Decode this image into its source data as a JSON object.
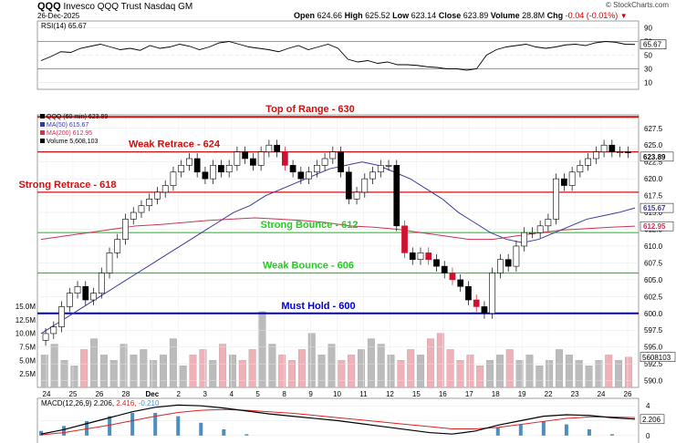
{
  "header": {
    "symbol": "QQQ",
    "name": "Invesco QQQ Trust",
    "exchange": "Nasdaq GM",
    "date": "26-Dec-2025",
    "credit": "© StockCharts.com",
    "open_label": "Open",
    "open": "624.66",
    "high_label": "High",
    "high": "625.52",
    "low_label": "Low",
    "low": "623.14",
    "close_label": "Close",
    "close": "623.89",
    "volume_label": "Volume",
    "volume": "28.8M",
    "chg_label": "Chg",
    "chg": "-0.04 (-0.01%)",
    "chg_icon": "down-triangle-icon"
  },
  "colors": {
    "up": "#ffffff",
    "down": "#000000",
    "down_red": "#d01030",
    "level_red": "#d01010",
    "level_green": "#22cc22",
    "level_blue": "#0000cc",
    "ma50": "#3a3a9a",
    "ma200": "#cc3355",
    "vol_up": "#bbbbbb",
    "vol_down": "#f0b0b8",
    "macd": "#000000",
    "signal": "#dd2222",
    "hist": "#4a8fc0"
  },
  "chart_data": [
    {
      "type": "line",
      "panel": "rsi",
      "legend": "RSI(14) 65.67",
      "value_label": "65.67",
      "yticks": [
        "90",
        "70",
        "50",
        "30",
        "10"
      ],
      "ylim": [
        0,
        100
      ],
      "values": [
        42,
        48,
        55,
        54,
        60,
        63,
        66,
        62,
        58,
        60,
        57,
        64,
        60,
        62,
        66,
        63,
        58,
        62,
        68,
        70,
        66,
        62,
        60,
        58,
        55,
        60,
        64,
        58,
        62,
        66,
        60,
        44,
        40,
        42,
        38,
        40,
        36,
        36,
        35,
        33,
        32,
        30,
        30,
        28,
        30,
        50,
        58,
        62,
        64,
        66,
        62,
        60,
        62,
        65,
        66,
        64,
        68,
        70,
        69,
        66,
        65.67
      ]
    },
    {
      "type": "candlestick",
      "panel": "price",
      "legend": [
        "QQQ (60 min) 623.89",
        "MA(50) 615.67",
        "MA(200) 612.95",
        "Volume 5,608,103"
      ],
      "last_price_label": "623.89",
      "ma50_label": "615.67",
      "ma200_label": "612.95",
      "yticks": [
        "627.5",
        "625.0",
        "622.5",
        "620.0",
        "617.5",
        "615.0",
        "612.5",
        "610.0",
        "607.5",
        "605.0",
        "602.5",
        "600.0",
        "597.5",
        "595.0",
        "592.5",
        "590.0"
      ],
      "ylim": [
        589,
        629.5
      ],
      "volume_ticks": [
        "15.0M",
        "12.5M",
        "10.0M",
        "7.5M",
        "5.0M",
        "2.5M"
      ],
      "volume_value_label": "5608103",
      "x_labels": [
        "24",
        "25",
        "26",
        "28",
        "Dec",
        "2",
        "3",
        "4",
        "5",
        "8",
        "9",
        "10",
        "11",
        "12",
        "15",
        "16",
        "17",
        "18",
        "19",
        "22",
        "23",
        "24",
        "26"
      ],
      "levels": [
        {
          "label": "Top of Range - 630",
          "value": 630,
          "color": "red"
        },
        {
          "label": "Weak Retrace - 624",
          "value": 624,
          "color": "red"
        },
        {
          "label": "Strong Retrace - 618",
          "value": 618,
          "color": "red"
        },
        {
          "label": "Strong Bounce - 612",
          "value": 612,
          "color": "green"
        },
        {
          "label": "Weak Bounce - 606",
          "value": 606,
          "color": "green"
        },
        {
          "label": "Must Hold - 600",
          "value": 600,
          "color": "blue"
        }
      ],
      "closes": [
        597,
        598,
        601,
        603,
        604,
        602,
        603,
        606,
        609,
        611,
        614,
        615,
        616,
        617,
        618,
        619,
        621,
        622,
        623,
        621,
        620,
        622,
        621,
        622,
        624,
        623,
        622,
        624,
        625,
        624,
        622,
        621,
        620,
        621,
        622,
        623,
        624,
        621,
        617,
        618,
        620,
        621,
        622,
        622,
        613,
        609,
        608,
        609,
        608,
        607,
        606,
        605,
        604,
        602,
        601,
        600,
        606,
        608,
        607,
        610,
        612,
        612,
        613,
        614,
        620,
        619,
        621,
        622,
        623,
        624,
        625,
        624,
        624,
        623.89
      ],
      "ma50": [
        597,
        598.5,
        600,
        601.5,
        603,
        604.5,
        606,
        607.5,
        609,
        610.5,
        612,
        613.5,
        615,
        616,
        617.5,
        618.5,
        619.5,
        620.5,
        621.5,
        622,
        622.5,
        622,
        621,
        620,
        618.5,
        617,
        615,
        613.5,
        612,
        611,
        610.5,
        611,
        612,
        613,
        614,
        614.5,
        615,
        615.67
      ],
      "ma200": [
        611,
        611.5,
        612,
        612.5,
        613,
        613.2,
        613.5,
        613.8,
        614,
        614.2,
        614,
        613.8,
        613.5,
        613,
        612.8,
        612.5,
        612,
        611.5,
        611,
        611,
        611.5,
        612,
        612.4,
        612.6,
        612.8,
        612.95
      ],
      "volume": [
        6,
        8,
        5,
        4,
        7,
        9,
        6,
        5,
        8,
        6,
        7,
        5,
        6,
        9,
        4,
        6,
        7,
        5,
        8,
        6,
        5,
        7,
        14,
        8,
        6,
        5,
        7,
        10,
        6,
        8,
        5,
        6,
        7,
        9,
        8,
        6,
        5,
        7,
        6,
        9,
        10,
        7,
        5,
        6,
        4,
        5,
        6,
        7,
        5,
        6,
        4,
        5,
        7,
        6,
        5,
        4,
        5,
        6,
        5,
        5.6
      ]
    },
    {
      "type": "line",
      "panel": "macd",
      "legend_label": "MACD(12,26,9)",
      "macd_value": "2.206",
      "signal_value": "2.416",
      "hist_value": "-0.210",
      "value_label": "2.206",
      "yticks": [
        "4",
        "2",
        "0"
      ],
      "ylim": [
        -1,
        5
      ],
      "macd": [
        0.2,
        0.8,
        1.6,
        2.4,
        3.2,
        3.8,
        4.1,
        4.0,
        3.7,
        3.3,
        2.9,
        2.6,
        2.3,
        2.0,
        1.6,
        1.2,
        0.8,
        0.4,
        0.2,
        0.6,
        1.4,
        2.0,
        2.6,
        2.8,
        2.7,
        2.4,
        2.206
      ],
      "signal": [
        0.1,
        0.4,
        0.9,
        1.4,
        2.0,
        2.6,
        3.1,
        3.4,
        3.5,
        3.4,
        3.2,
        3.0,
        2.7,
        2.4,
        2.1,
        1.8,
        1.5,
        1.2,
        0.9,
        0.9,
        1.1,
        1.5,
        1.9,
        2.3,
        2.5,
        2.5,
        2.416
      ]
    }
  ]
}
